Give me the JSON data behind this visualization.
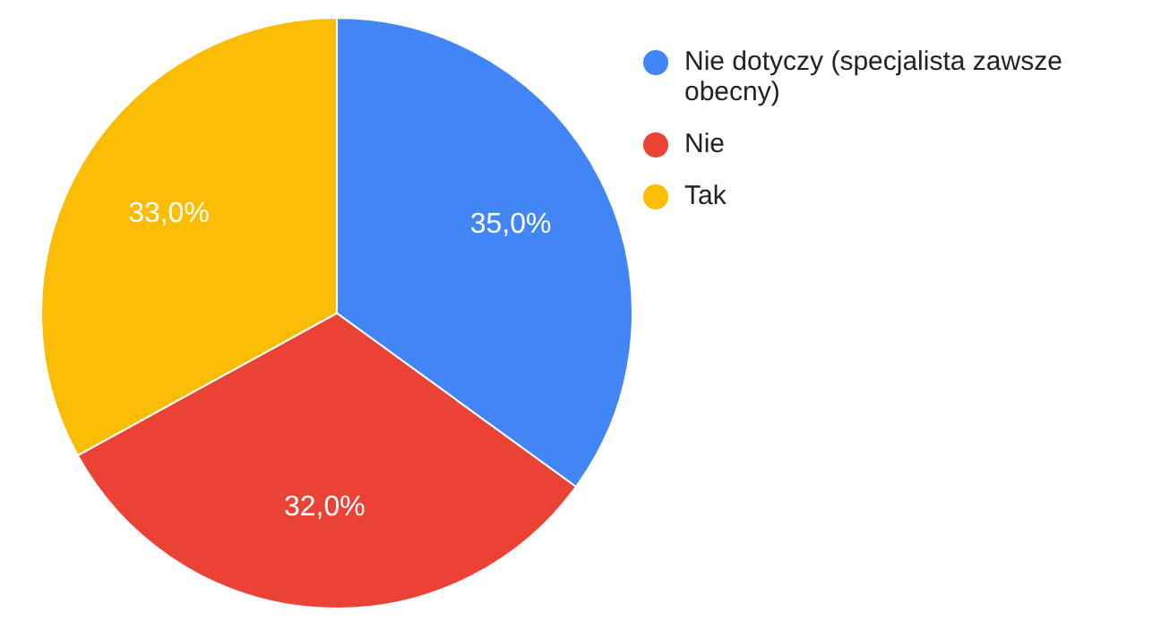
{
  "chart_data": {
    "type": "pie",
    "categories": [
      "Nie dotyczy (specjalista zawsze obecny)",
      "Nie",
      "Tak"
    ],
    "values": [
      35,
      32,
      33
    ],
    "colors": [
      "#4285f4",
      "#ea4335",
      "#fbbc04"
    ],
    "value_labels": [
      "35,0%",
      "32,0%",
      "33,0%"
    ],
    "legend": "right"
  }
}
